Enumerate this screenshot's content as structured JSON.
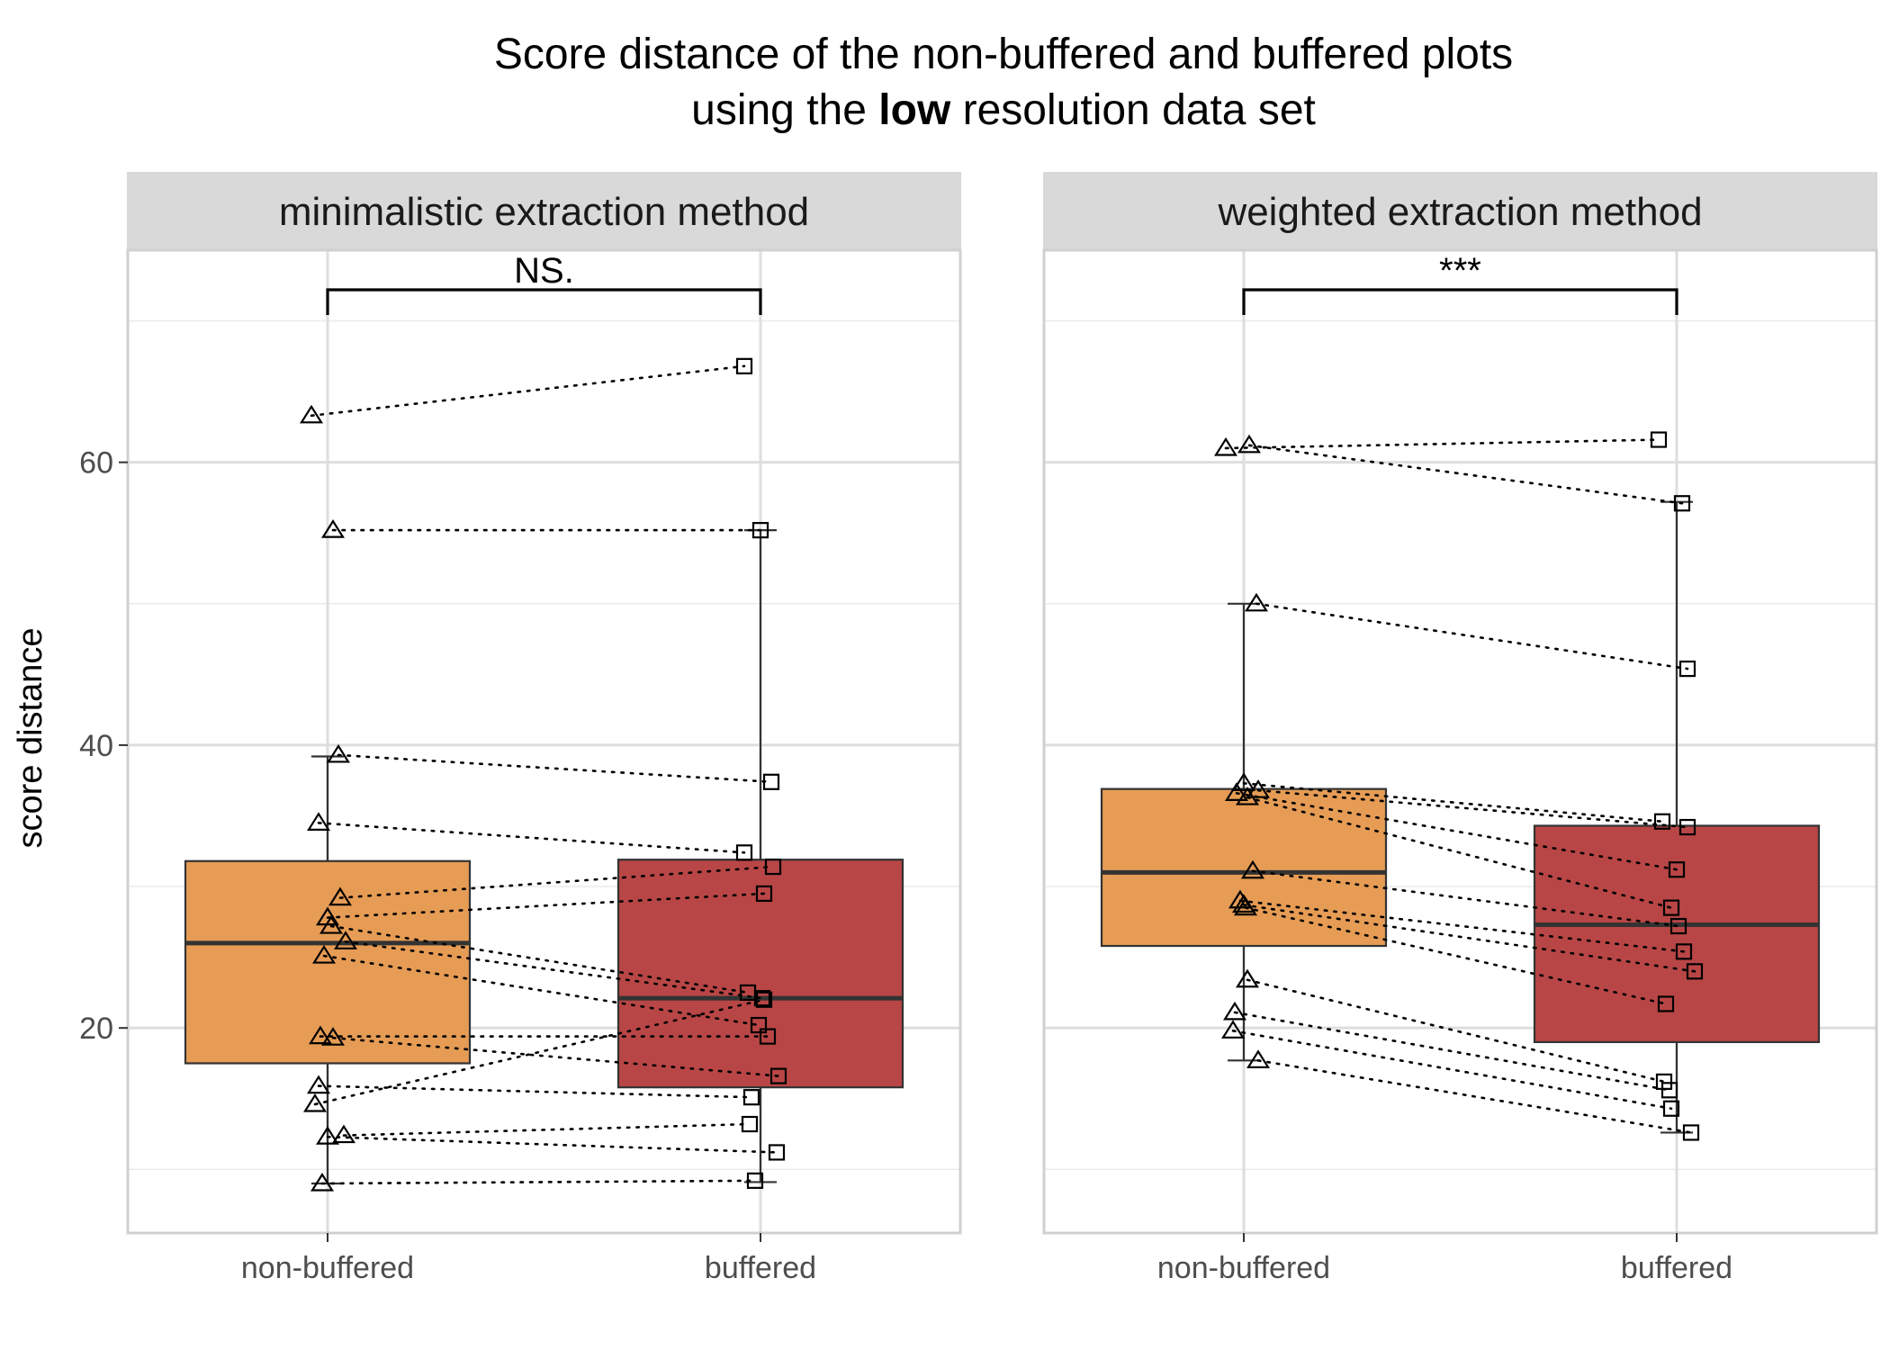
{
  "chart_data": {
    "type": "boxplot",
    "title_line1": "Score distance of the non-buffered and buffered plots",
    "title_line2_prefix": "using the ",
    "title_line2_bold": "low",
    "title_line2_suffix": " resolution data set",
    "ylabel": "score distance",
    "xlabel": "",
    "ylim": [
      5.5,
      75
    ],
    "yticks": [
      20,
      40,
      60
    ],
    "yminor": [
      10,
      30,
      50,
      70
    ],
    "categories": [
      "non-buffered",
      "buffered"
    ],
    "colors": {
      "non-buffered": "#E69C55",
      "buffered": "#B94646"
    },
    "panels": [
      {
        "strip": "minimalistic extraction method",
        "significance": "NS.",
        "boxes": [
          {
            "group": "non-buffered",
            "lower_whisker": 9.0,
            "q1": 17.5,
            "median": 26.0,
            "q3": 31.8,
            "upper_whisker": 39.2
          },
          {
            "group": "buffered",
            "lower_whisker": 9.1,
            "q1": 15.8,
            "median": 22.1,
            "q3": 31.9,
            "upper_whisker": 55.2
          }
        ],
        "pairs": [
          {
            "non_buffered": 63.3,
            "buffered": 66.8
          },
          {
            "non_buffered": 55.2,
            "buffered": 55.2
          },
          {
            "non_buffered": 39.3,
            "buffered": 37.4
          },
          {
            "non_buffered": 34.5,
            "buffered": 32.4
          },
          {
            "non_buffered": 29.2,
            "buffered": 31.4
          },
          {
            "non_buffered": 27.8,
            "buffered": 29.5
          },
          {
            "non_buffered": 27.2,
            "buffered": 22.5
          },
          {
            "non_buffered": 26.1,
            "buffered": 22.1
          },
          {
            "non_buffered": 25.1,
            "buffered": 20.2
          },
          {
            "non_buffered": 19.4,
            "buffered": 19.4
          },
          {
            "non_buffered": 19.3,
            "buffered": 16.6
          },
          {
            "non_buffered": 15.9,
            "buffered": 15.1
          },
          {
            "non_buffered": 14.6,
            "buffered": 22.0
          },
          {
            "non_buffered": 12.4,
            "buffered": 13.2
          },
          {
            "non_buffered": 12.3,
            "buffered": 11.2
          },
          {
            "non_buffered": 9.0,
            "buffered": 9.2
          }
        ]
      },
      {
        "strip": "weighted extraction method",
        "significance": "***",
        "boxes": [
          {
            "group": "non-buffered",
            "lower_whisker": 17.7,
            "q1": 25.8,
            "median": 31.0,
            "q3": 36.9,
            "upper_whisker": 50.0
          },
          {
            "group": "buffered",
            "lower_whisker": 12.6,
            "q1": 19.0,
            "median": 27.3,
            "q3": 34.3,
            "upper_whisker": 57.2
          }
        ],
        "pairs": [
          {
            "non_buffered": 61.0,
            "buffered": 61.6
          },
          {
            "non_buffered": 61.2,
            "buffered": 57.1
          },
          {
            "non_buffered": 50.0,
            "buffered": 45.4
          },
          {
            "non_buffered": 37.3,
            "buffered": 34.6
          },
          {
            "non_buffered": 36.8,
            "buffered": 34.2
          },
          {
            "non_buffered": 36.6,
            "buffered": 31.2
          },
          {
            "non_buffered": 36.3,
            "buffered": 28.5
          },
          {
            "non_buffered": 31.1,
            "buffered": 27.2
          },
          {
            "non_buffered": 29.0,
            "buffered": 25.4
          },
          {
            "non_buffered": 28.7,
            "buffered": 24.0
          },
          {
            "non_buffered": 28.5,
            "buffered": 21.7
          },
          {
            "non_buffered": 23.4,
            "buffered": 16.2
          },
          {
            "non_buffered": 21.1,
            "buffered": 15.6
          },
          {
            "non_buffered": 19.8,
            "buffered": 14.3
          },
          {
            "non_buffered": 17.7,
            "buffered": 12.6
          }
        ]
      }
    ]
  }
}
